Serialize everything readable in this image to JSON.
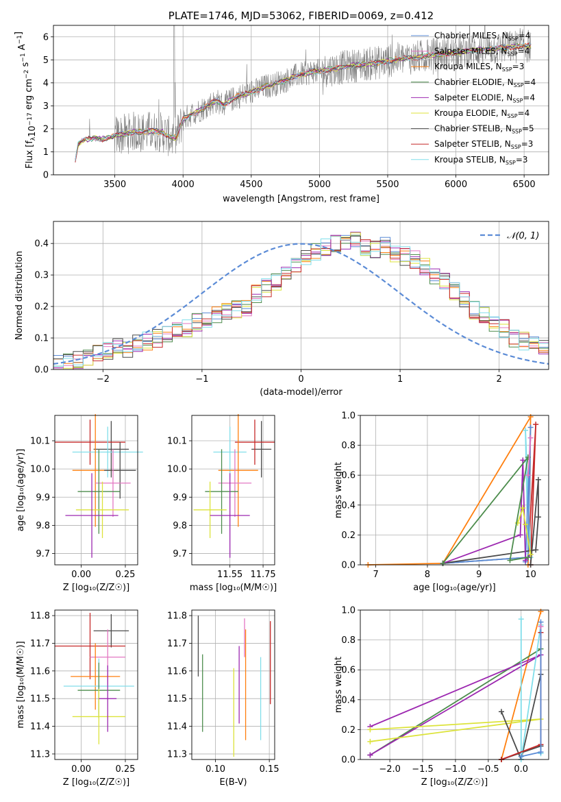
{
  "chart_data": [
    {
      "id": "spectrum",
      "type": "line",
      "title": "PLATE=1746, MJD=53062, FIBERID=0069, z=0.412",
      "xlabel": "wavelength [Angstrom, rest frame]",
      "ylabel": "Flux [f_λ 10^-17 erg cm^-2 s^-1 A^-1]",
      "xlim": [
        3050,
        6680
      ],
      "ylim": [
        0,
        6.5
      ],
      "xticks": [
        3500,
        4000,
        4500,
        5000,
        5500,
        6000,
        6500
      ],
      "yticks": [
        0,
        1,
        2,
        3,
        4,
        5,
        6
      ],
      "legend_position": "upper right",
      "legend": [
        {
          "label": "Chabrier MILES, N_SSP=4",
          "color": "#5b8bd6"
        },
        {
          "label": "Salpeter MILES, N_SSP=4",
          "color": "#e377c2"
        },
        {
          "label": "Kroupa MILES, N_SSP=3",
          "color": "#ff7f0e"
        },
        {
          "label": "Chabrier ELODIE, N_SSP=4",
          "color": "#4c8c4c"
        },
        {
          "label": "Salpeter ELODIE, N_SSP=4",
          "color": "#9c27b0"
        },
        {
          "label": "Kroupa ELODIE, N_SSP=4",
          "color": "#dce33a"
        },
        {
          "label": "Chabrier STELIB, N_SSP=5",
          "color": "#4a4a4a"
        },
        {
          "label": "Salpeter STELIB, N_SSP=3",
          "color": "#c62828"
        },
        {
          "label": "Kroupa STELIB, N_SSP=3",
          "color": "#80deea"
        }
      ],
      "data_color": "#7f7f7f",
      "model_continuum": {
        "x": [
          3210,
          3230,
          3250,
          3300,
          3350,
          3400,
          3450,
          3500,
          3550,
          3600,
          3650,
          3700,
          3750,
          3800,
          3850,
          3900,
          3950,
          4000,
          4050,
          4100,
          4150,
          4200,
          4250,
          4300,
          4350,
          4400,
          4450,
          4500,
          4550,
          4600,
          4650,
          4700,
          4750,
          4800,
          4850,
          4900,
          4950,
          5000,
          5100,
          5200,
          5300,
          5400,
          5500,
          5600,
          5700,
          5800,
          5900,
          6000,
          6100,
          6200,
          6300,
          6400,
          6500,
          6550
        ],
        "y": [
          0.6,
          1.3,
          1.45,
          1.55,
          1.6,
          1.55,
          1.6,
          1.7,
          1.75,
          1.8,
          1.9,
          1.85,
          1.9,
          1.9,
          1.85,
          1.65,
          1.6,
          2.4,
          2.6,
          2.75,
          2.9,
          3.1,
          3.2,
          3.05,
          3.25,
          3.4,
          3.5,
          3.6,
          3.7,
          3.85,
          3.9,
          4.0,
          4.1,
          4.25,
          4.35,
          4.4,
          4.5,
          4.5,
          4.6,
          4.7,
          4.8,
          4.85,
          4.95,
          5.05,
          5.1,
          5.2,
          5.25,
          5.3,
          5.4,
          5.45,
          5.5,
          5.55,
          5.6,
          5.6
        ]
      }
    },
    {
      "id": "residuals",
      "type": "histogram",
      "xlabel": "(data-model)/error",
      "ylabel": "Normed distribution",
      "xlim": [
        -2.5,
        2.5
      ],
      "ylim": [
        0,
        0.47
      ],
      "xticks": [
        -2,
        -1,
        0,
        1,
        2
      ],
      "yticks": [
        0.0,
        0.1,
        0.2,
        0.3,
        0.4
      ],
      "legend": [
        {
          "label": "N(0,1)",
          "color": "#5b8bd6",
          "style": "dashed"
        }
      ],
      "legend_position": "upper right",
      "bin_width": 0.1,
      "bin_start": -2.5,
      "reference_counts": [
        0.02,
        0.02,
        0.03,
        0.04,
        0.05,
        0.06,
        0.07,
        0.06,
        0.08,
        0.09,
        0.1,
        0.11,
        0.12,
        0.13,
        0.15,
        0.16,
        0.17,
        0.18,
        0.19,
        0.2,
        0.24,
        0.26,
        0.28,
        0.3,
        0.33,
        0.35,
        0.37,
        0.39,
        0.4,
        0.4,
        0.41,
        0.39,
        0.38,
        0.39,
        0.37,
        0.36,
        0.35,
        0.33,
        0.3,
        0.28,
        0.25,
        0.22,
        0.19,
        0.17,
        0.15,
        0.13,
        0.1,
        0.09,
        0.08,
        0.07
      ],
      "series_colors": [
        "#5b8bd6",
        "#e377c2",
        "#ff7f0e",
        "#4c8c4c",
        "#9c27b0",
        "#dce33a",
        "#4a4a4a",
        "#c62828",
        "#80deea"
      ]
    },
    {
      "id": "age-vs-Z",
      "type": "errorbar",
      "xlabel": "Z [log10(Z/Z☉)]",
      "ylabel": "age [log10(age/yr)]",
      "xlim": [
        -0.15,
        0.32
      ],
      "ylim": [
        9.66,
        10.19
      ],
      "xticks": [
        0.0,
        0.25
      ],
      "yticks": [
        9.7,
        9.8,
        9.9,
        10.0,
        10.1
      ],
      "points": [
        {
          "x": 0.17,
          "y": 10.07,
          "xerr": 0.1,
          "yerr": 0.1,
          "color": "#4a4a4a"
        },
        {
          "x": 0.05,
          "y": 10.095,
          "xerr": 0.2,
          "yerr": 0.08,
          "color": "#c62828"
        },
        {
          "x": 0.15,
          "y": 10.06,
          "xerr": 0.2,
          "yerr": 0.09,
          "color": "#80deea"
        },
        {
          "x": 0.08,
          "y": 9.995,
          "xerr": 0.13,
          "yerr": 0.2,
          "color": "#ff7f0e"
        },
        {
          "x": 0.22,
          "y": 9.995,
          "xerr": 0.09,
          "yerr": 0.1,
          "color": "#4a4a4a"
        },
        {
          "x": 0.18,
          "y": 9.95,
          "xerr": 0.1,
          "yerr": 0.12,
          "color": "#e377c2"
        },
        {
          "x": 0.1,
          "y": 9.92,
          "xerr": 0.12,
          "yerr": 0.15,
          "color": "#4c8c4c"
        },
        {
          "x": 0.12,
          "y": 9.855,
          "xerr": 0.15,
          "yerr": 0.1,
          "color": "#dce33a"
        },
        {
          "x": 0.06,
          "y": 9.835,
          "xerr": 0.15,
          "yerr": 0.15,
          "color": "#9c27b0"
        }
      ]
    },
    {
      "id": "age-vs-mass",
      "type": "errorbar",
      "xlabel": "mass [log10(M/M☉)]",
      "ylabel": "",
      "xlim": [
        11.32,
        11.82
      ],
      "ylim": [
        9.66,
        10.19
      ],
      "xticks": [
        11.55,
        11.75
      ],
      "yticks": [
        9.7,
        9.8,
        9.9,
        10.0,
        10.1
      ],
      "points": [
        {
          "x": 11.74,
          "y": 10.07,
          "xerr": 0.06,
          "yerr": 0.1,
          "color": "#4a4a4a"
        },
        {
          "x": 11.7,
          "y": 10.095,
          "xerr": 0.12,
          "yerr": 0.08,
          "color": "#c62828"
        },
        {
          "x": 11.55,
          "y": 10.06,
          "xerr": 0.1,
          "yerr": 0.09,
          "color": "#80deea"
        },
        {
          "x": 11.6,
          "y": 9.995,
          "xerr": 0.12,
          "yerr": 0.2,
          "color": "#ff7f0e"
        },
        {
          "x": 11.58,
          "y": 9.95,
          "xerr": 0.1,
          "yerr": 0.12,
          "color": "#e377c2"
        },
        {
          "x": 11.5,
          "y": 9.92,
          "xerr": 0.1,
          "yerr": 0.15,
          "color": "#4c8c4c"
        },
        {
          "x": 11.43,
          "y": 9.855,
          "xerr": 0.1,
          "yerr": 0.1,
          "color": "#dce33a"
        },
        {
          "x": 11.55,
          "y": 9.835,
          "xerr": 0.12,
          "yerr": 0.15,
          "color": "#9c27b0"
        }
      ]
    },
    {
      "id": "weight-vs-age",
      "type": "line",
      "xlabel": "age [log10(age/yr)]",
      "ylabel": "mass weight",
      "xlim": [
        6.7,
        10.35
      ],
      "ylim": [
        0,
        1
      ],
      "xticks": [
        7,
        8,
        9,
        10
      ],
      "yticks": [
        0.0,
        0.2,
        0.4,
        0.6,
        0.8,
        1.0
      ],
      "series": [
        {
          "color": "#ff7f0e",
          "x": [
            6.85,
            8.3,
            10.0,
            9.95
          ],
          "y": [
            0.0,
            0.01,
            0.99,
            0.0
          ]
        },
        {
          "color": "#c62828",
          "x": [
            8.3,
            9.95,
            10.1,
            10.0
          ],
          "y": [
            0.01,
            0.05,
            0.94,
            0.0
          ]
        },
        {
          "color": "#80deea",
          "x": [
            8.3,
            9.95,
            9.9,
            10.0
          ],
          "y": [
            0.01,
            0.05,
            0.9,
            0.05
          ]
        },
        {
          "color": "#5b8bd6",
          "x": [
            8.3,
            9.95,
            10.0,
            9.9
          ],
          "y": [
            0.01,
            0.05,
            0.92,
            0.02
          ]
        },
        {
          "color": "#4a4a4a",
          "x": [
            8.3,
            10.1,
            10.15,
            10.15,
            10.0
          ],
          "y": [
            0.01,
            0.1,
            0.32,
            0.57,
            0.0
          ]
        },
        {
          "color": "#9c27b0",
          "x": [
            8.3,
            9.8,
            9.85,
            9.9,
            10.0
          ],
          "y": [
            0.01,
            0.2,
            0.7,
            0.03,
            0.07
          ]
        },
        {
          "color": "#dce33a",
          "x": [
            9.75,
            9.85,
            9.9,
            10.0
          ],
          "y": [
            0.28,
            0.38,
            0.27,
            0.07
          ]
        },
        {
          "color": "#4c8c4c",
          "x": [
            8.3,
            9.95,
            9.6,
            9.95
          ],
          "y": [
            0.01,
            0.72,
            0.03,
            0.05
          ]
        },
        {
          "color": "#e377c2",
          "x": [
            9.95,
            10.0
          ],
          "y": [
            0.6,
            0.85
          ]
        }
      ]
    },
    {
      "id": "mass-vs-Z",
      "type": "errorbar",
      "xlabel": "Z [log10(Z/Z☉)]",
      "ylabel": "mass [log10(M/M☉)]",
      "xlim": [
        -0.15,
        0.32
      ],
      "ylim": [
        11.28,
        11.82
      ],
      "xticks": [
        0.0,
        0.25
      ],
      "yticks": [
        11.3,
        11.4,
        11.5,
        11.6,
        11.7,
        11.8
      ],
      "points": [
        {
          "x": 0.17,
          "y": 11.745,
          "xerr": 0.1,
          "yerr": 0.06,
          "color": "#4a4a4a"
        },
        {
          "x": 0.05,
          "y": 11.69,
          "xerr": 0.2,
          "yerr": 0.12,
          "color": "#c62828"
        },
        {
          "x": 0.15,
          "y": 11.65,
          "xerr": 0.1,
          "yerr": 0.1,
          "color": "#e377c2"
        },
        {
          "x": 0.08,
          "y": 11.58,
          "xerr": 0.14,
          "yerr": 0.12,
          "color": "#ff7f0e"
        },
        {
          "x": 0.1,
          "y": 11.545,
          "xerr": 0.2,
          "yerr": 0.1,
          "color": "#80deea"
        },
        {
          "x": 0.1,
          "y": 11.53,
          "xerr": 0.12,
          "yerr": 0.1,
          "color": "#4c8c4c"
        },
        {
          "x": 0.1,
          "y": 11.435,
          "xerr": 0.15,
          "yerr": 0.1,
          "color": "#dce33a"
        },
        {
          "x": 0.15,
          "y": 11.5,
          "xerr": 0.05,
          "yerr": 0.12,
          "color": "#9c27b0"
        }
      ]
    },
    {
      "id": "mass-vs-ebv",
      "type": "errorbar",
      "xlabel": "E(B-V)",
      "ylabel": "",
      "xlim": [
        0.078,
        0.155
      ],
      "ylim": [
        11.28,
        11.82
      ],
      "xticks": [
        0.1,
        0.15
      ],
      "yticks": [
        11.3,
        11.4,
        11.5,
        11.6,
        11.7,
        11.8
      ],
      "points": [
        {
          "x": 0.084,
          "y": 11.69,
          "yerr": 0.11,
          "color": "#4a4a4a"
        },
        {
          "x": 0.088,
          "y": 11.52,
          "yerr": 0.14,
          "color": "#4c8c4c"
        },
        {
          "x": 0.117,
          "y": 11.45,
          "yerr": 0.16,
          "color": "#dce33a"
        },
        {
          "x": 0.122,
          "y": 11.55,
          "yerr": 0.14,
          "color": "#9c27b0"
        },
        {
          "x": 0.127,
          "y": 11.72,
          "yerr": 0.07,
          "color": "#e377c2"
        },
        {
          "x": 0.128,
          "y": 11.55,
          "yerr": 0.2,
          "color": "#ff7f0e"
        },
        {
          "x": 0.142,
          "y": 11.5,
          "yerr": 0.15,
          "color": "#80deea"
        },
        {
          "x": 0.151,
          "y": 11.63,
          "yerr": 0.15,
          "color": "#c62828"
        }
      ]
    },
    {
      "id": "weight-vs-Z",
      "type": "line",
      "xlabel": "Z [log10(Z/Z☉)]",
      "ylabel": "mass weight",
      "xlim": [
        -2.45,
        0.42
      ],
      "ylim": [
        0,
        1
      ],
      "xticks": [
        -2.0,
        -1.5,
        -1.0,
        -0.5,
        0.0
      ],
      "yticks": [
        0.0,
        0.2,
        0.4,
        0.6,
        0.8,
        1.0
      ],
      "series": [
        {
          "color": "#ff7f0e",
          "x": [
            -0.3,
            0.3,
            -0.3
          ],
          "y": [
            0.0,
            0.99,
            0.0
          ]
        },
        {
          "color": "#4c8c4c",
          "x": [
            -2.3,
            0.3
          ],
          "y": [
            0.03,
            0.74
          ]
        },
        {
          "color": "#9c27b0",
          "x": [
            -2.3,
            0.3,
            -2.3
          ],
          "y": [
            0.03,
            0.7,
            0.22
          ]
        },
        {
          "color": "#dce33a",
          "x": [
            -2.3,
            0.3,
            -2.3
          ],
          "y": [
            0.2,
            0.27,
            0.12
          ]
        },
        {
          "color": "#4a4a4a",
          "x": [
            -0.3,
            0.0,
            0.3,
            0.3,
            -0.3
          ],
          "y": [
            0.32,
            0.0,
            0.57,
            0.09,
            0.0
          ]
        },
        {
          "color": "#80deea",
          "x": [
            0.0,
            0.0,
            0.3,
            0.3
          ],
          "y": [
            0.94,
            0.0,
            0.9,
            0.04
          ]
        },
        {
          "color": "#c62828",
          "x": [
            -0.3,
            0.3,
            0.3
          ],
          "y": [
            0.0,
            0.1,
            0.85
          ]
        },
        {
          "color": "#5b8bd6",
          "x": [
            0.0,
            0.3,
            0.3
          ],
          "y": [
            0.02,
            0.05,
            0.92
          ]
        },
        {
          "color": "#e377c2",
          "x": [
            0.3
          ],
          "y": [
            0.89
          ]
        }
      ]
    }
  ]
}
